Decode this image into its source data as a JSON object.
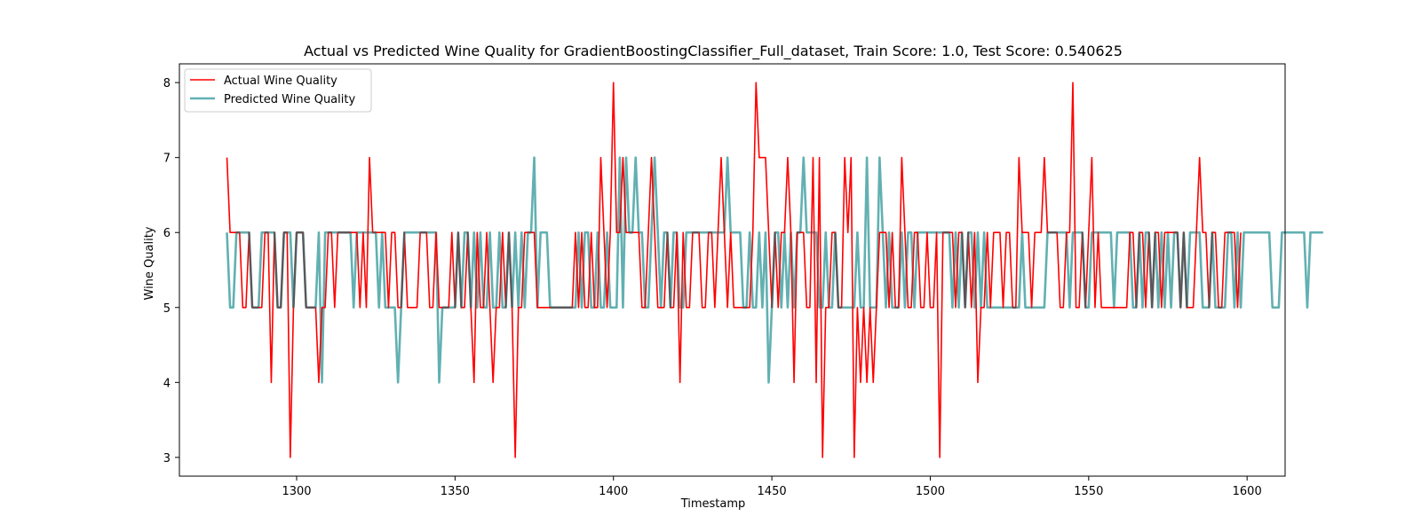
{
  "chart_data": {
    "type": "line",
    "title": "Actual vs Predicted Wine Quality for GradientBoostingClassifier_Full_dataset, Train Score: 1.0, Test Score: 0.540625",
    "xlabel": "Timestamp",
    "ylabel": "Wine Quality",
    "xlim": [
      1263,
      1612
    ],
    "ylim": [
      2.75,
      8.25
    ],
    "xticks": [
      1300,
      1350,
      1400,
      1450,
      1500,
      1550,
      1600
    ],
    "yticks": [
      3,
      4,
      5,
      6,
      7,
      8
    ],
    "grid": false,
    "legend_position": "top-left",
    "x_start": 1278,
    "series": [
      {
        "name": "Actual Wine Quality",
        "color": "#ff0000",
        "values": [
          7,
          6,
          6,
          6,
          6,
          5,
          5,
          6,
          5,
          5,
          5,
          5,
          6,
          6,
          4,
          6,
          5,
          5,
          6,
          6,
          3,
          5,
          6,
          6,
          6,
          5,
          5,
          5,
          5,
          4,
          5,
          5,
          6,
          6,
          5,
          6,
          6,
          6,
          6,
          6,
          6,
          6,
          5,
          6,
          5,
          7,
          6,
          6,
          6,
          6,
          6,
          5,
          6,
          6,
          5,
          5,
          6,
          5,
          5,
          5,
          5,
          6,
          6,
          6,
          5,
          5,
          6,
          5,
          5,
          5,
          5,
          6,
          5,
          6,
          5,
          5,
          6,
          5,
          4,
          6,
          5,
          5,
          6,
          5,
          4,
          5,
          5,
          6,
          5,
          6,
          5,
          3,
          5,
          5,
          6,
          6,
          6,
          6,
          5,
          5,
          5,
          5,
          5,
          5,
          5,
          5,
          5,
          5,
          5,
          5,
          6,
          5,
          6,
          5,
          5,
          6,
          5,
          5,
          7,
          6,
          5,
          6,
          8,
          6,
          6,
          7,
          6,
          6,
          6,
          6,
          6,
          5,
          5,
          6,
          7,
          6,
          5,
          5,
          5,
          6,
          5,
          5,
          6,
          4,
          6,
          5,
          5,
          6,
          6,
          6,
          5,
          5,
          6,
          6,
          5,
          6,
          7,
          6,
          5,
          6,
          5,
          5,
          5,
          5,
          5,
          5,
          6,
          8,
          7,
          7,
          7,
          6,
          5,
          6,
          5,
          6,
          6,
          7,
          6,
          4,
          6,
          6,
          6,
          5,
          5,
          7,
          4,
          7,
          3,
          5,
          5,
          6,
          6,
          5,
          5,
          7,
          6,
          7,
          3,
          5,
          4,
          5,
          4,
          5,
          4,
          5,
          6,
          6,
          6,
          5,
          6,
          5,
          5,
          7,
          6,
          5,
          5,
          6,
          6,
          5,
          5,
          6,
          5,
          5,
          6,
          3,
          6,
          6,
          6,
          6,
          5,
          6,
          6,
          5,
          6,
          5,
          6,
          4,
          5,
          5,
          6,
          5,
          6,
          6,
          6,
          5,
          6,
          6,
          5,
          5,
          7,
          6,
          6,
          6,
          5,
          6,
          6,
          6,
          7,
          6,
          6,
          6,
          6,
          5,
          5,
          6,
          6,
          8,
          5,
          5,
          6,
          5,
          6,
          7,
          5,
          6,
          5,
          5,
          5,
          5,
          5,
          5,
          5,
          5,
          5,
          6,
          6,
          5,
          6,
          6,
          5,
          6,
          5,
          6,
          6,
          5,
          6,
          6,
          6,
          6,
          6,
          5,
          6,
          5,
          5,
          5,
          6,
          7,
          6,
          6,
          5,
          6,
          6,
          5,
          5,
          6,
          6,
          6,
          6,
          5,
          6
        ]
      },
      {
        "name": "Predicted Wine Quality",
        "color": "#62b0b2",
        "values": [
          6,
          5,
          5,
          6,
          6,
          6,
          6,
          6,
          5,
          5,
          5,
          6,
          6,
          6,
          6,
          6,
          5,
          5,
          6,
          6,
          6,
          5,
          6,
          6,
          6,
          5,
          5,
          5,
          5,
          6,
          4,
          6,
          6,
          6,
          6,
          6,
          6,
          6,
          6,
          6,
          5,
          6,
          6,
          6,
          6,
          6,
          6,
          6,
          5,
          6,
          5,
          5,
          5,
          5,
          4,
          5,
          6,
          6,
          6,
          6,
          6,
          6,
          6,
          6,
          6,
          6,
          6,
          4,
          5,
          5,
          5,
          5,
          5,
          6,
          5,
          6,
          6,
          5,
          6,
          5,
          6,
          5,
          5,
          6,
          5,
          5,
          6,
          5,
          5,
          6,
          5,
          6,
          5,
          6,
          5,
          6,
          6,
          7,
          5,
          6,
          6,
          6,
          5,
          5,
          5,
          5,
          5,
          5,
          5,
          5,
          5,
          6,
          5,
          6,
          6,
          5,
          5,
          6,
          5,
          5,
          6,
          5,
          5,
          5,
          7,
          5,
          7,
          6,
          6,
          7,
          6,
          6,
          5,
          5,
          6,
          7,
          6,
          5,
          6,
          6,
          5,
          6,
          6,
          5,
          5,
          6,
          6,
          6,
          6,
          6,
          6,
          6,
          6,
          6,
          6,
          6,
          6,
          6,
          7,
          6,
          6,
          6,
          6,
          5,
          5,
          6,
          5,
          5,
          6,
          5,
          6,
          4,
          5,
          6,
          6,
          5,
          6,
          5,
          6,
          5,
          6,
          6,
          7,
          6,
          6,
          6,
          6,
          5,
          5,
          6,
          5,
          5,
          6,
          5,
          5,
          5,
          5,
          5,
          5,
          6,
          5,
          5,
          7,
          5,
          5,
          5,
          7,
          6,
          5,
          6,
          5,
          5,
          5,
          6,
          5,
          6,
          6,
          5,
          6,
          6,
          6,
          6,
          6,
          6,
          6,
          6,
          6,
          6,
          6,
          5,
          6,
          5,
          6,
          5,
          6,
          6,
          5,
          6,
          5,
          6,
          5,
          5,
          5,
          5,
          5,
          5,
          5,
          5,
          5,
          5,
          5,
          6,
          5,
          5,
          5,
          5,
          5,
          5,
          5,
          6,
          6,
          6,
          6,
          6,
          6,
          6,
          5,
          6,
          6,
          6,
          6,
          5,
          5,
          6,
          6,
          6,
          6,
          6,
          6,
          6,
          5,
          6,
          6,
          6,
          6,
          6,
          5,
          5,
          6,
          5,
          6,
          6,
          5,
          6,
          5,
          6,
          5,
          6,
          5,
          6,
          6,
          5,
          6,
          5,
          6,
          6,
          6,
          6,
          5,
          5,
          5,
          6,
          5,
          5,
          5,
          5,
          6,
          6,
          5,
          6,
          5,
          6,
          6,
          6,
          6,
          6,
          6,
          6,
          6,
          6,
          5,
          5,
          5,
          6,
          6,
          6,
          6,
          6,
          6,
          6,
          6,
          5,
          6,
          6,
          6,
          6,
          6
        ]
      }
    ]
  }
}
